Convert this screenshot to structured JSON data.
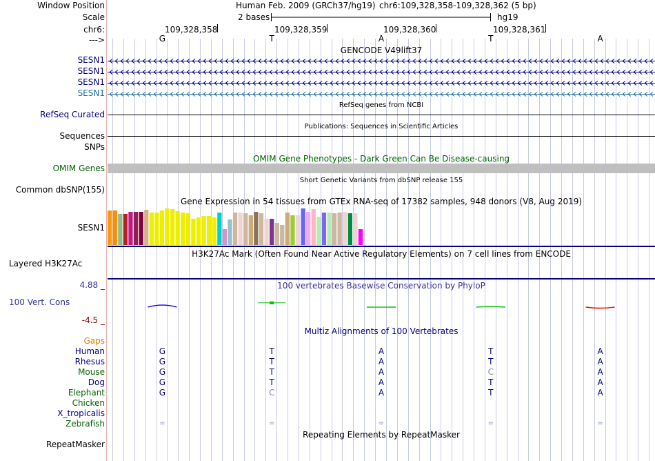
{
  "labels": {
    "window_position": "Window Position",
    "scale": "Scale",
    "chrom": "chr6:",
    "direction": "--->",
    "gencode_genes": [
      "SESN1",
      "SESN1",
      "SESN1",
      "SESN1"
    ],
    "refseq": "RefSeq Curated",
    "sequences": "Sequences",
    "snps": "SNPs",
    "omim": "OMIM Genes",
    "dbsnp": "Common dbSNP(155)",
    "gtex_gene": "SESN1",
    "h3k27ac": "Layered H3K27Ac",
    "cons_max": "4.88 _",
    "cons_label": "100 Vert. Cons",
    "cons_min": "-4.5 _",
    "gaps": "Gaps",
    "repeatmasker": "RepeatMasker"
  },
  "header": {
    "assembly": "Human Feb. 2009 (GRCh37/hg19)",
    "position": "chr6:109,328,358-109,328,362 (5 bp)",
    "scale_text": "2 bases",
    "db": "hg19",
    "ticks": [
      "109,328,358",
      "109,328,359",
      "109,328,360",
      "109,328,361"
    ],
    "bases": [
      "G",
      "T",
      "A",
      "T",
      "A"
    ]
  },
  "titles": {
    "gencode": "GENCODE V49lift37",
    "refseq": "RefSeq genes from NCBI",
    "publications": "Publications: Sequences in Scientific Articles",
    "omim": "OMIM Gene Phenotypes - Dark Green Can Be Disease-causing",
    "dbsnp": "Short Genetic Variants from dbSNP release 155",
    "gtex": "Gene Expression in 54 tissues from GTEx RNA-seq of 17382 samples, 948 donors (V8, Aug 2019)",
    "h3k27ac": "H3K27Ac Mark (Often Found Near Active Regulatory Elements) on 7 cell lines from ENCODE",
    "phylop": "100 vertebrates Basewise Conservation by PhyloP",
    "multiz": "Multiz Alignments of 100 Vertebrates",
    "repeatmasker": "Repeating Elements by RepeatMasker"
  },
  "gtex_bars": [
    {
      "value": 0.95,
      "color": "#f39c12"
    },
    {
      "value": 0.95,
      "color": "#ff8c00"
    },
    {
      "value": 0.84,
      "color": "#8fbc8f"
    },
    {
      "value": 0.84,
      "color": "#b22222"
    },
    {
      "value": 0.91,
      "color": "#c71585"
    },
    {
      "value": 0.91,
      "color": "#8b2252"
    },
    {
      "value": 0.91,
      "color": "#800040"
    },
    {
      "value": 0.96,
      "color": "#d2b48c"
    },
    {
      "value": 0.88,
      "color": "#eeee00"
    },
    {
      "value": 0.88,
      "color": "#eeee00"
    },
    {
      "value": 0.95,
      "color": "#eeee00"
    },
    {
      "value": 1.0,
      "color": "#eeee00"
    },
    {
      "value": 0.98,
      "color": "#eeee00"
    },
    {
      "value": 0.93,
      "color": "#eeee00"
    },
    {
      "value": 0.88,
      "color": "#eeee00"
    },
    {
      "value": 0.86,
      "color": "#eeee00"
    },
    {
      "value": 0.71,
      "color": "#eeee00"
    },
    {
      "value": 0.75,
      "color": "#eeee00"
    },
    {
      "value": 0.79,
      "color": "#eeee00"
    },
    {
      "value": 0.79,
      "color": "#eeee00"
    },
    {
      "value": 0.75,
      "color": "#eeee00"
    },
    {
      "value": 0.88,
      "color": "#00ced1"
    },
    {
      "value": 0.43,
      "color": "#cd96cd"
    },
    {
      "value": 0.7,
      "color": "#9ac0cd"
    },
    {
      "value": 0.88,
      "color": "#cdb79e"
    },
    {
      "value": 0.88,
      "color": "#eed5d2"
    },
    {
      "value": 0.86,
      "color": "#cdb79e"
    },
    {
      "value": 0.82,
      "color": "#cdaa7d"
    },
    {
      "value": 0.91,
      "color": "#8b7355"
    },
    {
      "value": 0.86,
      "color": "#cdb79e"
    },
    {
      "value": 0.72,
      "color": "#eed5d2"
    },
    {
      "value": 0.72,
      "color": "#7a378b"
    },
    {
      "value": 0.61,
      "color": "#cdb79e"
    },
    {
      "value": 0.54,
      "color": "#cdb79e"
    },
    {
      "value": 0.88,
      "color": "#cdaa7d"
    },
    {
      "value": 0.82,
      "color": "#9acd32"
    },
    {
      "value": 0.82,
      "color": "#eed5d2"
    },
    {
      "value": 1.0,
      "color": "#6666ff"
    },
    {
      "value": 0.91,
      "color": "#eeaeee"
    },
    {
      "value": 0.98,
      "color": "#ffb6c1"
    },
    {
      "value": 0.77,
      "color": "#b4eeb4"
    },
    {
      "value": 0.88,
      "color": "#7b68ee"
    },
    {
      "value": 0.88,
      "color": "#b4eeb4"
    },
    {
      "value": 0.86,
      "color": "#cdb79e"
    },
    {
      "value": 0.88,
      "color": "#cdb79e"
    },
    {
      "value": 0.91,
      "color": "#eed5d2"
    },
    {
      "value": 0.86,
      "color": "#008b45"
    },
    {
      "value": 0.86,
      "color": "#eed5d2"
    },
    {
      "value": 0.43,
      "color": "#ff00ff"
    }
  ],
  "phylop": [
    {
      "value": 1.2,
      "color": "#0000ff"
    },
    {
      "value": 1.8,
      "color": "#00c000"
    },
    {
      "value": -0.3,
      "color": "#00c000"
    },
    {
      "value": 0.1,
      "color": "#00c000"
    },
    {
      "value": -1.0,
      "color": "#ff0000"
    }
  ],
  "alignment": {
    "species": [
      {
        "name": "Human",
        "color": "#000080",
        "bases": [
          "G",
          "T",
          "A",
          "T",
          "A"
        ]
      },
      {
        "name": "Rhesus",
        "color": "#000080",
        "bases": [
          "G",
          "T",
          "A",
          "T",
          "A"
        ]
      },
      {
        "name": "Mouse",
        "color": "#006400",
        "bases": [
          "G",
          "T",
          "A",
          "C",
          "A"
        ]
      },
      {
        "name": "Dog",
        "color": "#000080",
        "bases": [
          "G",
          "T",
          "A",
          "T",
          "A"
        ]
      },
      {
        "name": "Elephant",
        "color": "#006400",
        "bases": [
          "G",
          "C",
          "A",
          "T",
          "A"
        ]
      },
      {
        "name": "Chicken",
        "color": "#006400",
        "bases": [
          "",
          "",
          "",
          "",
          ""
        ]
      },
      {
        "name": "X_tropicalis",
        "color": "#000080",
        "bases": [
          "",
          "",
          "",
          "",
          ""
        ]
      },
      {
        "name": "Zebrafish",
        "color": "#006400",
        "bases": [
          "=",
          "=",
          "=",
          "=",
          "="
        ]
      }
    ]
  },
  "colors": {
    "navy": "#000080",
    "gaps": "#e08000",
    "omim": "#006400",
    "phylop": "#333399",
    "cons_min": "#8b0000",
    "gencode_last": "#1f6ca0",
    "grid": "#c7cbe6",
    "separator": "#000080",
    "omim_bar": "#bfbfbf",
    "mismatch": "#8080b0"
  }
}
